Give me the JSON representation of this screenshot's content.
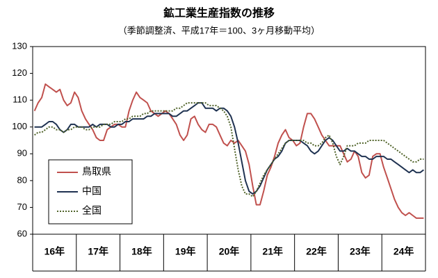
{
  "chart_data": {
    "type": "line",
    "title": "鉱工業生産指数の推移",
    "subtitle": "（季節調整済、平成17年＝100、3ヶ月移動平均）",
    "categories": [
      "16年",
      null,
      null,
      null,
      null,
      null,
      null,
      null,
      null,
      null,
      null,
      null,
      "17年",
      null,
      null,
      null,
      null,
      null,
      null,
      null,
      null,
      null,
      null,
      null,
      "18年",
      null,
      null,
      null,
      null,
      null,
      null,
      null,
      null,
      null,
      null,
      null,
      "19年",
      null,
      null,
      null,
      null,
      null,
      null,
      null,
      null,
      null,
      null,
      null,
      "20年",
      null,
      null,
      null,
      null,
      null,
      null,
      null,
      null,
      null,
      null,
      null,
      "21年",
      null,
      null,
      null,
      null,
      null,
      null,
      null,
      null,
      null,
      null,
      null,
      "22年",
      null,
      null,
      null,
      null,
      null,
      null,
      null,
      null,
      null,
      null,
      null,
      "23年",
      null,
      null,
      null,
      null,
      null,
      null,
      null,
      null,
      null,
      null,
      null,
      "24年",
      null,
      null,
      null,
      null,
      null,
      null,
      null,
      null,
      null,
      null,
      null
    ],
    "ylim": [
      60,
      130
    ],
    "yticks": [
      60,
      70,
      80,
      90,
      100,
      110,
      120,
      130
    ],
    "series": [
      {
        "name": "鳥取県",
        "color": "#c0504d",
        "style": "solid",
        "values": [
          106,
          109,
          111,
          116,
          115,
          114,
          113,
          114,
          110,
          108,
          109,
          113,
          111,
          106,
          103,
          101,
          99,
          96,
          95,
          95,
          99,
          100,
          101,
          101,
          100,
          100,
          106,
          110,
          113,
          111,
          110,
          109,
          106,
          105,
          104,
          105,
          106,
          105,
          103,
          101,
          97,
          95,
          97,
          103,
          104,
          101,
          99,
          98,
          101,
          101,
          100,
          97,
          94,
          93,
          95,
          94,
          95,
          93,
          91,
          86,
          78,
          71,
          71,
          76,
          82,
          85,
          89,
          94,
          97,
          99,
          96,
          95,
          93,
          94,
          100,
          105,
          105,
          103,
          100,
          97,
          95,
          93,
          93,
          93,
          93,
          90,
          87,
          88,
          91,
          89,
          83,
          81,
          82,
          89,
          90,
          90,
          85,
          81,
          77,
          73,
          70,
          68,
          67,
          68,
          67,
          66,
          66,
          66
        ]
      },
      {
        "name": "中国",
        "color": "#1f3251",
        "style": "solid",
        "values": [
          100,
          100,
          100,
          101,
          102,
          102,
          101,
          99,
          98,
          99,
          101,
          101,
          100,
          100,
          100,
          100,
          101,
          100,
          101,
          101,
          101,
          100,
          100,
          101,
          101,
          102,
          102,
          103,
          103,
          103,
          103,
          104,
          104,
          105,
          105,
          105,
          105,
          105,
          104,
          104,
          105,
          106,
          106,
          107,
          108,
          109,
          109,
          107,
          107,
          107,
          106,
          107,
          107,
          106,
          104,
          100,
          94,
          87,
          80,
          76,
          75,
          76,
          78,
          81,
          84,
          86,
          88,
          89,
          91,
          94,
          95,
          95,
          95,
          95,
          94,
          93,
          91,
          90,
          91,
          93,
          95,
          96,
          95,
          93,
          91,
          91,
          92,
          91,
          91,
          90,
          89,
          89,
          88,
          88,
          89,
          89,
          89,
          88,
          88,
          87,
          86,
          85,
          84,
          83,
          84,
          83,
          83,
          84
        ]
      },
      {
        "name": "全国",
        "color": "#4f6228",
        "style": "dotted",
        "values": [
          97,
          98,
          98,
          99,
          100,
          100,
          99,
          99,
          98,
          99,
          99,
          100,
          100,
          100,
          99,
          99,
          100,
          100,
          100,
          101,
          101,
          101,
          102,
          102,
          102,
          103,
          103,
          104,
          104,
          104,
          105,
          105,
          106,
          106,
          106,
          106,
          106,
          106,
          106,
          107,
          107,
          108,
          109,
          109,
          109,
          109,
          109,
          109,
          108,
          108,
          108,
          107,
          106,
          104,
          100,
          92,
          84,
          78,
          75,
          75,
          74,
          76,
          79,
          82,
          84,
          86,
          88,
          90,
          92,
          94,
          95,
          95,
          95,
          95,
          95,
          94,
          94,
          93,
          93,
          94,
          96,
          97,
          94,
          89,
          86,
          89,
          93,
          93,
          93,
          94,
          94,
          94,
          95,
          95,
          95,
          95,
          95,
          94,
          93,
          92,
          91,
          90,
          89,
          88,
          87,
          87,
          88,
          88
        ]
      }
    ]
  }
}
